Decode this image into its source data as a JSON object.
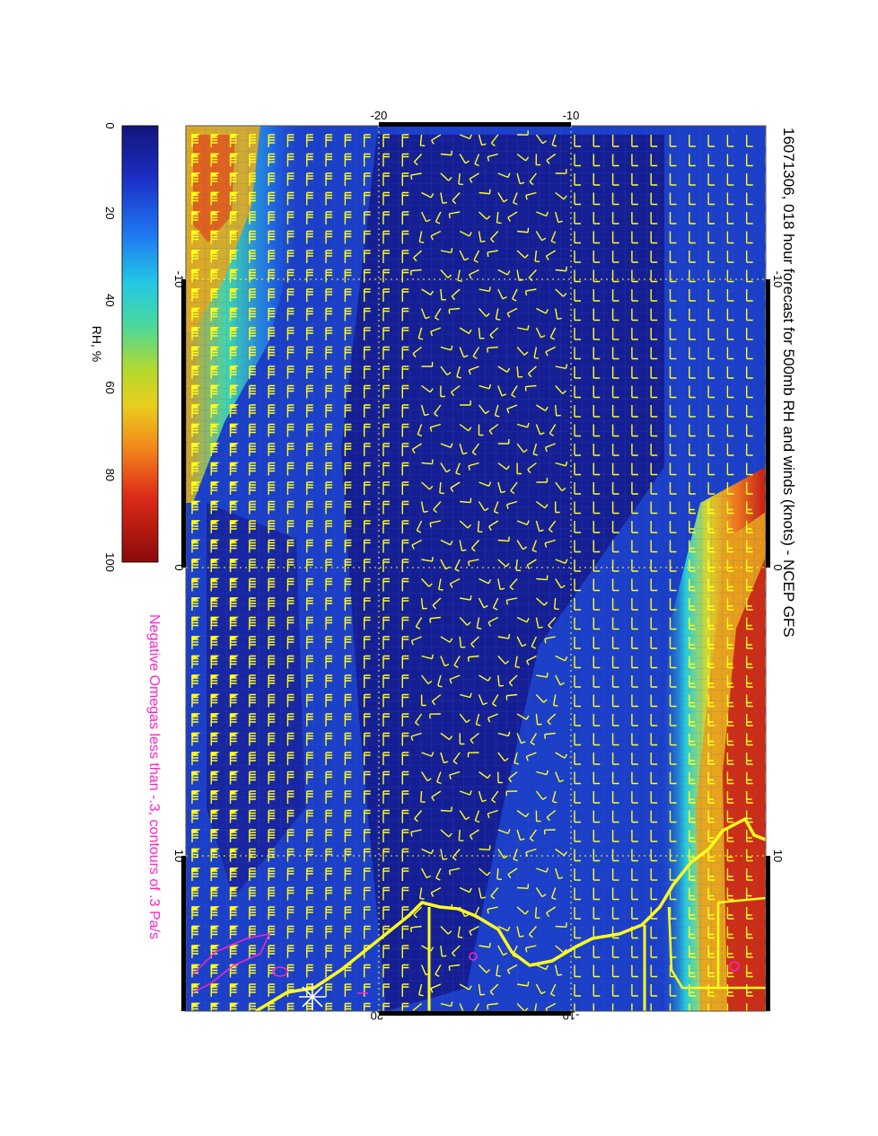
{
  "title": "16071306, 018 hour forecast for 500mb RH and winds (knots) - NCEP GFS",
  "subtitle": "Negative Omegas less than -.3, contours of .3 Pa/s",
  "colorbar": {
    "label": "RH, %",
    "ticks": [
      "0",
      "20",
      "40",
      "60",
      "80",
      "100"
    ],
    "colors": [
      "#1d1f8f",
      "#1c3fd0",
      "#1f8ff2",
      "#22d2d8",
      "#58d880",
      "#c9d92b",
      "#f2c71a",
      "#f0761c",
      "#d41f1a",
      "#9c0e0e"
    ]
  },
  "map": {
    "lat_labels_top": [
      "-20",
      "-10"
    ],
    "lat_labels_bottom": [
      "-20",
      "-10"
    ],
    "lon_labels_left": [
      "-10",
      "0",
      "10"
    ],
    "lon_labels_right": [
      "-10",
      "0",
      "10"
    ],
    "overlay_color": "#ffff1e",
    "omega_color": "#ff22cc",
    "background_rh_color": "#1c3fc8"
  }
}
